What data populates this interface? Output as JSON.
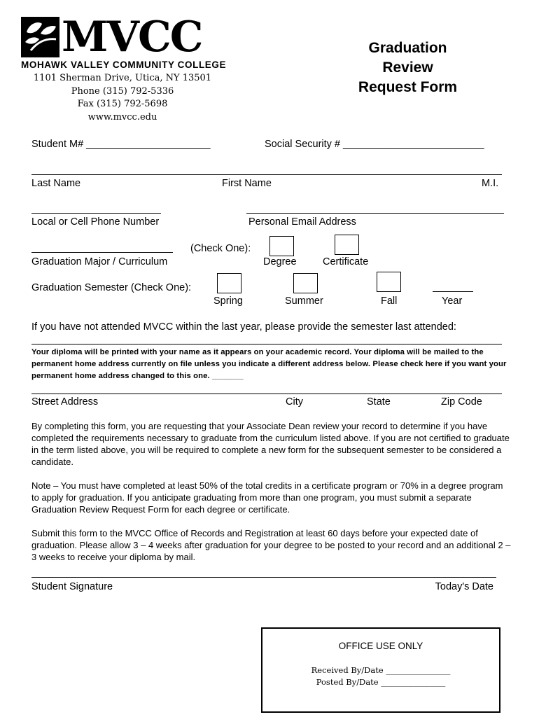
{
  "header": {
    "logo_text": "MVCC",
    "college_name": "MOHAWK VALLEY COMMUNITY COLLEGE",
    "address": "1101 Sherman Drive, Utica, NY 13501",
    "phone": "Phone (315) 792-5336",
    "fax": "Fax (315) 792-5698",
    "website": "www.mvcc.edu",
    "title_lines": [
      "Graduation",
      "Review",
      "Request Form"
    ]
  },
  "fields": {
    "student_number": "Student M# ______________________",
    "ssn": "Social Security # _________________________",
    "last_name": "Last Name",
    "first_name": "First Name",
    "mi": "M.I.",
    "phone": "Local or Cell Phone Number",
    "email": "Personal Email Address",
    "check_one": "(Check One):",
    "major": "Graduation Major / Curriculum",
    "degree": "Degree",
    "certificate": "Certificate",
    "semester_label": "Graduation Semester (Check One):",
    "spring": "Spring",
    "summer": "Summer",
    "fall": "Fall",
    "year": "Year",
    "last_attended": "If you have not attended MVCC within the last year, please provide the semester last attended:",
    "street": "Street Address",
    "city": "City",
    "state": "State",
    "zip": "Zip Code",
    "signature": "Student Signature",
    "date": "Today's Date"
  },
  "diploma_notice": "Your diploma will be printed with your name as it appears on your academic record. Your diploma will be mailed to the permanent home address currently on file unless you indicate a different address below.  Please check here if you want your permanent home address changed to this one. _______",
  "paragraphs": [
    "By completing this form, you are requesting that your Associate Dean review your record to determine if you have completed the requirements necessary to graduate from the curriculum listed above. If you are not certified to graduate in the term listed above, you will be required to complete a new form for the subsequent semester to be considered a candidate.",
    "Note – You must have completed at least 50% of the total credits in a certificate program or 70% in a degree program to apply for graduation. If you anticipate graduating from more than one program, you must submit a separate Graduation Review Request Form for each degree or certificate.",
    "Submit this form to the MVCC Office of Records and Registration at least 60 days before your expected date of graduation. Please allow 3 – 4 weeks after graduation for your degree to be posted to your record and an additional 2 – 3 weeks to receive your diploma by mail."
  ],
  "office": {
    "title": "OFFICE USE ONLY",
    "received": "Received By/Date ________________",
    "posted": "Posted By/Date ________________"
  }
}
